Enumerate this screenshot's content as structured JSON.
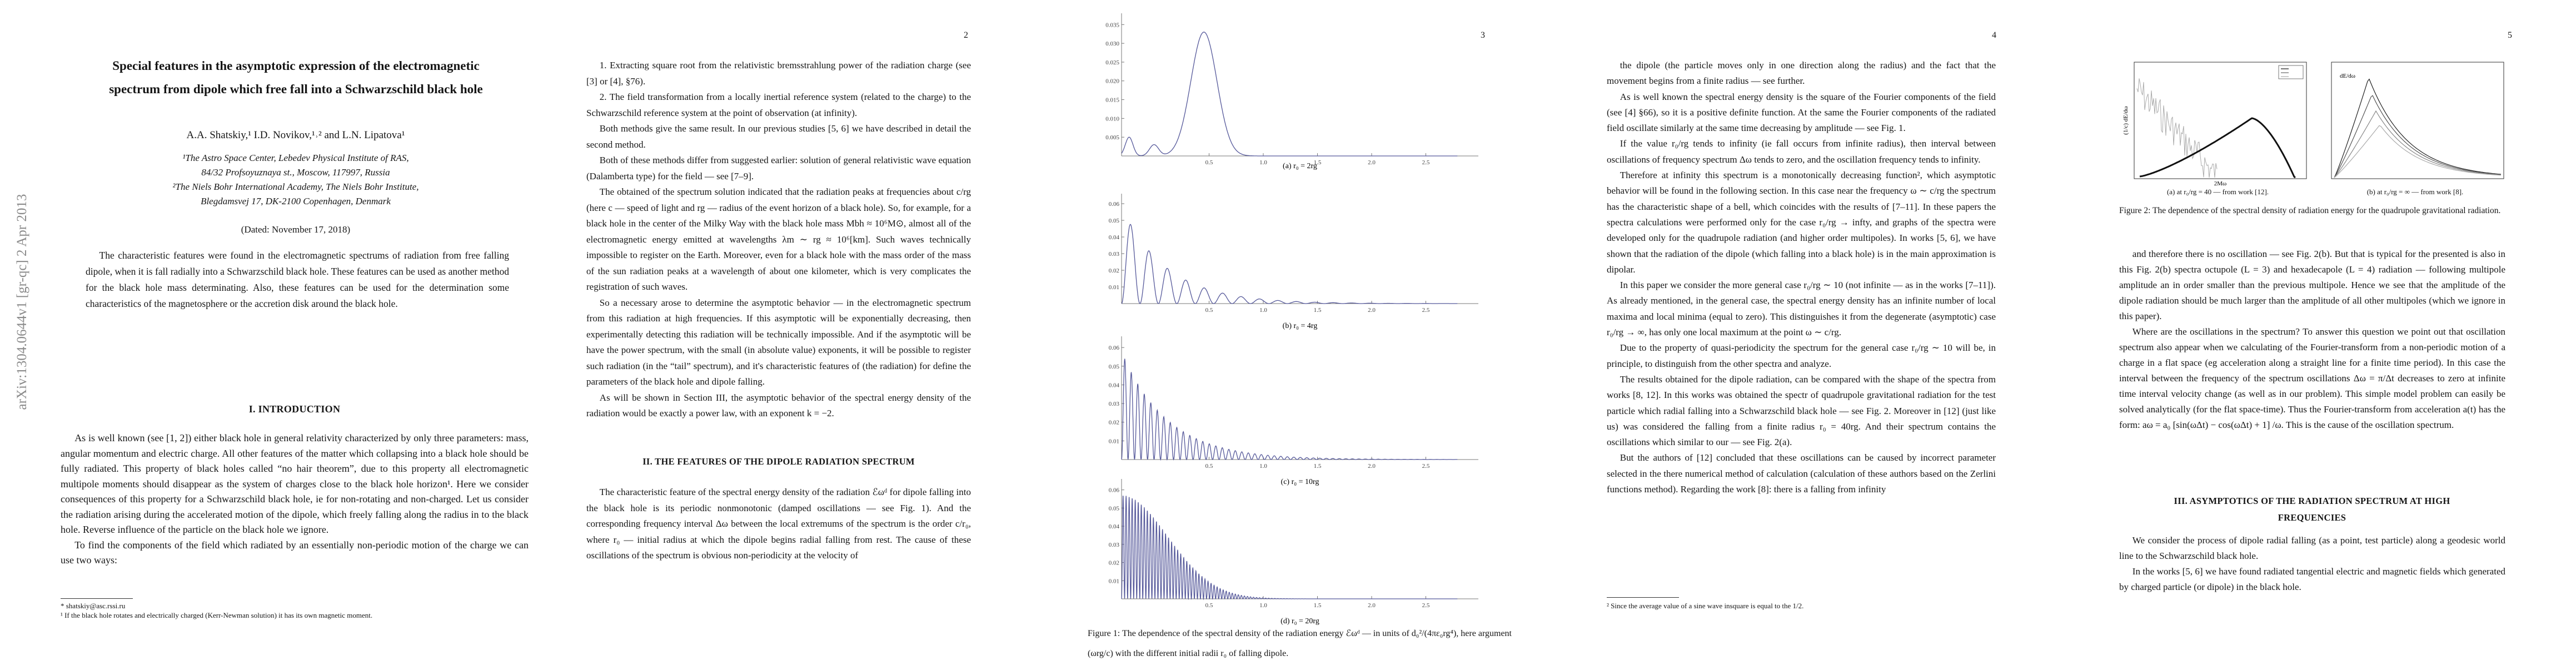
{
  "arxiv_stamp": "arXiv:1304.0644v1  [gr-qc]  2 Apr 2013",
  "page1": {
    "title": "Special features in the asymptotic expression of the electromagnetic spectrum from dipole which free fall into a Schwarzschild black hole",
    "authors": "A.A. Shatskiy,¹ I.D. Novikov,¹˒² and L.N. Lipatova¹",
    "affiliations": [
      "¹The Astro Space Center, Lebedev Physical Institute of RAS,",
      "84/32 Profsoyuznaya st., Moscow, 117997, Russia",
      "²The Niels Bohr International Academy, The Niels Bohr Institute,",
      "Blegdamsvej 17, DK-2100 Copenhagen, Denmark"
    ],
    "date": "(Dated: November 17, 2018)",
    "abstract": "The characteristic features were found in the electromagnetic spectrums of radiation from free falling dipole, when it is fall radially into a Schwarzschild black hole. These features can be used as another method for the black hole mass determinating. Also, these features can be used for the determination some characteristics of the magnetosphere or the accretion disk around the black hole.",
    "heading": "I.  INTRODUCTION",
    "paragraphs": [
      "As is well known (see [1, 2]) either black hole in general relativity characterized by only three parameters: mass, angular momentum and electric charge. All other features of the matter which collapsing into a black hole should be fully radiated. This property of black holes called “no hair theorem”, due to this property all electromagnetic multipole moments should disappear as the system of charges close to the black hole horizon¹. Here we consider consequences of this property for a Schwarzschild black hole, ie for non-rotating and non-charged. Let us consider the radiation arising during the accelerated motion of the dipole, which freely falling along the radius in to the black hole. Reverse influence of the particle on the black hole we ignore.",
      "To find the components of the field which radiated by an essentially non-periodic motion of the charge we can use two ways:"
    ],
    "footnotes": [
      "* shatskiy@asc.rssi.ru",
      "¹ If the black hole rotates and electrically charged (Kerr-Newman solution) it has its own magnetic moment."
    ]
  },
  "page2": {
    "page_number": "2",
    "paragraphs": [
      "1. Extracting square root from the relativistic bremsstrahlung power of the radiation charge (see [3] or [4], §76).",
      "2. The field transformation from a locally inertial reference system (related to the charge) to the Schwarzschild reference system at the point of observation (at infinity).",
      "Both methods give the same result. In our previous studies [5, 6] we have described in detail the second method.",
      "Both of these methods differ from suggested earlier: solution of general relativistic wave equation (Dalamberta type) for the field — see [7–9].",
      "The obtained of the spectrum solution indicated that the radiation peaks at frequencies about c/rg (here c — speed of light and rg — radius of the event horizon of a black hole). So, for example, for a black hole in the center of the Milky Way with the black hole mass Mbh ≈ 10⁶M⊙, almost all of the electromagnetic energy emitted at wavelengths λm ∼ rg ≈ 10⁶[km]. Such waves technically impossible to register on the Earth. Moreover, even for a black hole with the mass order of the mass of the sun radiation peaks at a wavelength of about one kilometer, which is very complicates the registration of such waves.",
      "So a necessary arose to determine the asymptotic behavior — in the electromagnetic spectrum from this radiation at high frequencies. If this asymptotic will be exponentially decreasing, then experimentally detecting this radiation will be technically impossible. And if the asymptotic will be have the power spectrum, with the small (in absolute value) exponents, it will be possible to register such radiation (in the “tail” spectrum), and it's characteristic features of (the radiation) for define the parameters of the black hole and dipole falling.",
      "As will be shown in Section III, the asymptotic behavior of the spectral energy density of the radiation would be exactly a power law, with an exponent k = −2."
    ],
    "heading": "II.  THE FEATURES OF THE DIPOLE RADIATION SPECTRUM",
    "paragraphs_after": [
      "The characteristic feature of the spectral energy density of the radiation ℰωᵈ for dipole falling into the black hole is its periodic nonmonotonic (damped oscillations — see Fig. 1). And the corresponding frequency interval Δω between the local extremums of the spectrum is the order c/r₀, where r₀ — initial radius at which the dipole begins radial falling from rest. The cause of these oscillations of the spectrum is obvious non-periodicity at the velocity of"
    ]
  },
  "page3": {
    "page_number": "3",
    "panels": [
      {
        "yticks": [
          "0.005",
          "0.010",
          "0.015",
          "0.020",
          "0.025",
          "0.030",
          "0.035"
        ],
        "xticks": [
          "0.5",
          "1.0",
          "1.5",
          "2.0",
          "2.5"
        ],
        "subcaption": "(a) r₀ = 2rg"
      },
      {
        "yticks": [
          "0.01",
          "0.02",
          "0.03",
          "0.04",
          "0.05",
          "0.06"
        ],
        "xticks": [
          "0.5",
          "1.0",
          "1.5",
          "2.0",
          "2.5"
        ],
        "subcaption": "(b) r₀ = 4rg"
      },
      {
        "yticks": [
          "0.01",
          "0.02",
          "0.03",
          "0.04",
          "0.05",
          "0.06"
        ],
        "xticks": [
          "0.5",
          "1.0",
          "1.5",
          "2.0",
          "2.5"
        ],
        "subcaption": "(c) r₀ = 10rg"
      },
      {
        "yticks": [
          "0.01",
          "0.02",
          "0.03",
          "0.04",
          "0.05",
          "0.06"
        ],
        "xticks": [
          "0.5",
          "1.0",
          "1.5",
          "2.0",
          "2.5"
        ],
        "subcaption": "(d) r₀ = 20rg"
      }
    ],
    "caption": "Figure 1:  The dependence of the spectral density of the radiation energy ℰωᵈ — in units of d₀²/(4πε₀rg⁴), here argument (ωrg/c) with the different initial radii r₀ of falling dipole."
  },
  "page4": {
    "page_number": "4",
    "paragraphs": [
      "the dipole (the particle moves only in one direction along the radius) and the fact that the movement begins from a finite radius — see further.",
      "As is well known the spectral energy density is the square of the Fourier components of the field (see [4] §66), so it is a positive definite function. At the same the Fourier components of the radiated field oscillate similarly at the same time decreasing by amplitude — see Fig. 1.",
      "If the value r₀/rg tends to infinity (ie fall occurs from infinite radius), then interval between oscillations of frequency spectrum Δω tends to zero, and the oscillation frequency tends to infinity.",
      "Therefore at infinity this spectrum is a monotonically decreasing function², which asymptotic behavior will be found in the following section. In this case near the frequency ω ∼ c/rg the spectrum has the characteristic shape of a bell, which coincides with the results of [7–11]. In these papers the spectra calculations were performed only for the case r₀/rg → infty, and graphs of the spectra were developed only for the quadrupole radiation (and higher order multipoles). In works [5, 6], we have shown that the radiation of the dipole (which falling into a black hole) is in the main approximation is dipolar.",
      "In this paper we consider the more general case r₀/rg ∼ 10 (not infinite — as in the works [7–11]). As already mentioned, in the general case, the spectral energy density has an infinite number of local maxima and local minima (equal to zero). This distinguishes it from the degenerate (asymptotic) case r₀/rg → ∞, has only one local maximum at the point ω ∼ c/rg.",
      "Due to the property of quasi-periodicity the spectrum for the general case r₀/rg ∼ 10 will be, in principle, to distinguish from the other spectra and analyze.",
      "The results obtained for the dipole radiation, can be compared with the shape of the spectra from works [8, 12]. In this works was obtained the spectr of quadrupole gravitational radiation for the test particle which radial falling into a Schwarzschild black hole — see Fig. 2. Moreover in [12] (just like us) was considered the falling from a finite radius r₀ = 40rg. And their spectrum contains the oscillations which similar to our — see Fig. 2(a).",
      "But the authors of [12] concluded that these oscillations can be caused by incorrect parameter selected in the there numerical method of calculation (calculation of these authors based on the Zerlini functions method). Regarding the work [8]: there is a falling from infinity"
    ],
    "footnote": "² Since the average value of a sine wave insquare is equal to the 1/2."
  },
  "page5": {
    "page_number": "5",
    "panels": [
      {
        "y_label": "(1/c) dE/dω",
        "x_label": "2Mω",
        "subcaption": "(a) at r₀/rg = 40 — from work [12]."
      },
      {
        "y_label": "dE/dω",
        "subcaption": "(b) at r₀/rg = ∞ — from work [8]."
      }
    ],
    "caption": "Figure 2: The dependence of the spectral density of radiation energy for the quadrupole gravitational radiation.",
    "paragraphs": [
      "and therefore there is no oscillation — see Fig. 2(b). But that is typical for the presented is also in this Fig. 2(b) spectra octupole (L = 3) and hexadecapole (L = 4) radiation — following multipole amplitude an in order smaller than the previous multipole. Hence we see that the amplitude of the dipole radiation should be much larger than the amplitude of all other multipoles (which we ignore in this paper).",
      "Where are the oscillations in the spectrum? To answer this question we point out that oscillation spectrum also appear when we calculating of the Fourier-transform from a non-periodic motion of a charge in a flat space (eg acceleration along a straight line for a finite time period). In this case the interval between the frequency of the spectrum oscillations Δω = π/Δt decreases to zero at infinite time interval velocity change (as well as in our problem). This simple model problem can easily be solved analytically (for the flat space-time). Thus the Fourier-transform from acceleration a(t) has the form: aω = a₀ [sin(ωΔt) − cos(ωΔt) + 1] /ω. This is the cause of the oscillation spectrum."
    ],
    "heading": "III.  ASYMPTOTICS OF THE RADIATION SPECTRUM AT HIGH FREQUENCIES",
    "paragraphs_after": [
      "We consider the process of dipole radial falling (as a point, test particle) along a geodesic world line to the Schwarzschild black hole.",
      "In the works [5, 6] we have found radiated tangential electric and magnetic fields which generated by charged particle (or dipole) in the black hole."
    ]
  }
}
